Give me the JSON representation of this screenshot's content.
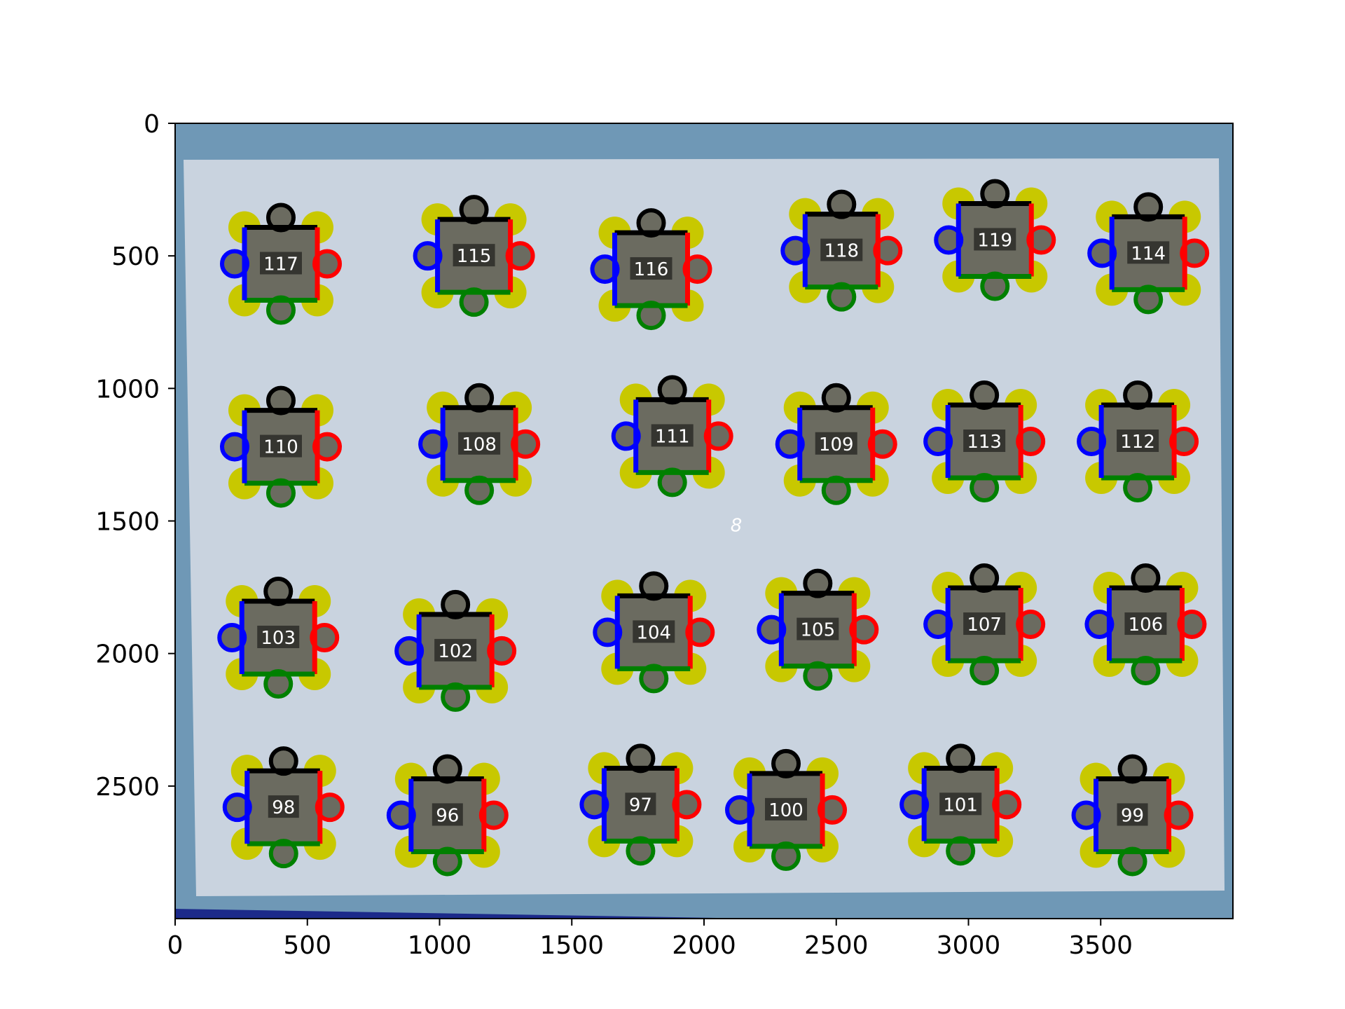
{
  "chart_data": {
    "type": "scatter",
    "title": "",
    "xlabel": "",
    "ylabel": "",
    "xlim": [
      0,
      4000
    ],
    "ylim": [
      3000,
      0
    ],
    "y_inverted": true,
    "grid": false,
    "x_ticks": [
      0,
      500,
      1000,
      1500,
      2000,
      2500,
      3000,
      3500
    ],
    "y_ticks": [
      0,
      500,
      1000,
      1500,
      2000,
      2500
    ],
    "annotations": [
      {
        "text": "8",
        "x": 2100,
        "y": 1540
      }
    ],
    "piece_edge_colors": [
      "#000000",
      "#ff0000",
      "#008000",
      "#0000ff"
    ],
    "corner_marker_color": "#c8c800",
    "background_colors": {
      "board": "#6f98b6",
      "sheet": "#c9d3df",
      "piece": "#6b6b60"
    },
    "points": [
      {
        "label": "117",
        "x": 400,
        "y": 530
      },
      {
        "label": "115",
        "x": 1130,
        "y": 500
      },
      {
        "label": "116",
        "x": 1800,
        "y": 550
      },
      {
        "label": "118",
        "x": 2520,
        "y": 480
      },
      {
        "label": "119",
        "x": 3100,
        "y": 440
      },
      {
        "label": "114",
        "x": 3680,
        "y": 490
      },
      {
        "label": "110",
        "x": 400,
        "y": 1220
      },
      {
        "label": "108",
        "x": 1150,
        "y": 1210
      },
      {
        "label": "111",
        "x": 1880,
        "y": 1180
      },
      {
        "label": "109",
        "x": 2500,
        "y": 1210
      },
      {
        "label": "113",
        "x": 3060,
        "y": 1200
      },
      {
        "label": "112",
        "x": 3640,
        "y": 1200
      },
      {
        "label": "103",
        "x": 390,
        "y": 1940
      },
      {
        "label": "102",
        "x": 1060,
        "y": 1990
      },
      {
        "label": "104",
        "x": 1810,
        "y": 1920
      },
      {
        "label": "105",
        "x": 2430,
        "y": 1910
      },
      {
        "label": "107",
        "x": 3060,
        "y": 1890
      },
      {
        "label": "106",
        "x": 3670,
        "y": 1890
      },
      {
        "label": "98",
        "x": 410,
        "y": 2580
      },
      {
        "label": "96",
        "x": 1030,
        "y": 2610
      },
      {
        "label": "97",
        "x": 1760,
        "y": 2570
      },
      {
        "label": "100",
        "x": 2310,
        "y": 2590
      },
      {
        "label": "101",
        "x": 2970,
        "y": 2570
      },
      {
        "label": "99",
        "x": 3620,
        "y": 2610
      }
    ]
  }
}
